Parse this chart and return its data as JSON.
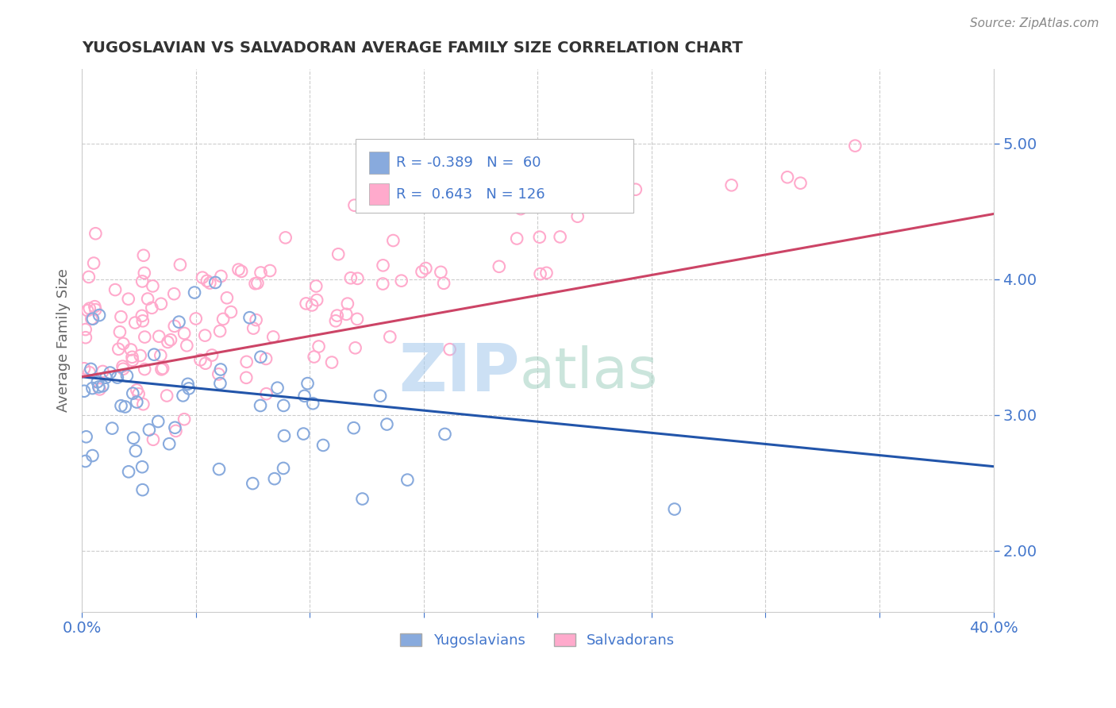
{
  "title": "YUGOSLAVIAN VS SALVADORAN AVERAGE FAMILY SIZE CORRELATION CHART",
  "source_text": "Source: ZipAtlas.com",
  "ylabel": "Average Family Size",
  "xlim": [
    0.0,
    0.4
  ],
  "ylim": [
    1.55,
    5.55
  ],
  "yticks_right": [
    2.0,
    3.0,
    4.0,
    5.0
  ],
  "xticks": [
    0.0,
    0.05,
    0.1,
    0.15,
    0.2,
    0.25,
    0.3,
    0.35,
    0.4
  ],
  "legend_label1": "Yugoslavians",
  "legend_label2": "Salvadorans",
  "color_blue": "#88AADD",
  "color_pink": "#FFAACC",
  "trend_color_blue": "#2255AA",
  "trend_color_pink": "#CC4466",
  "watermark_zip_color": "#AACCEE",
  "watermark_atlas_color": "#99CCBB",
  "background_color": "#FFFFFF",
  "grid_color": "#CCCCCC",
  "title_color": "#333333",
  "axis_color": "#4477CC",
  "R1": -0.389,
  "N1": 60,
  "R2": 0.643,
  "N2": 126,
  "seed": 42,
  "trend1_x0": 0.0,
  "trend1_y0": 3.28,
  "trend1_x1": 0.4,
  "trend1_y1": 2.62,
  "trend2_x0": 0.0,
  "trend2_y0": 3.28,
  "trend2_x1": 0.4,
  "trend2_y1": 4.48,
  "figsize": [
    14.06,
    8.92
  ],
  "dpi": 100
}
